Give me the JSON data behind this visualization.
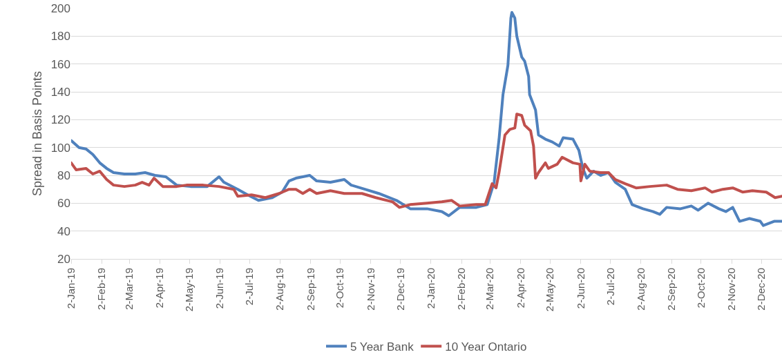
{
  "chart_data": {
    "type": "line",
    "ylabel": "Spread in Basis Points",
    "ylim": [
      20,
      200
    ],
    "yticks": [
      20,
      40,
      60,
      80,
      100,
      120,
      140,
      160,
      180,
      200
    ],
    "xlim": [
      "2019-01-02",
      "2020-12-23"
    ],
    "xticks": [
      {
        "value": "2019-01-02",
        "label": "2-Jan-19"
      },
      {
        "value": "2019-02-02",
        "label": "2-Feb-19"
      },
      {
        "value": "2019-03-02",
        "label": "2-Mar-19"
      },
      {
        "value": "2019-04-02",
        "label": "2-Apr-19"
      },
      {
        "value": "2019-05-02",
        "label": "2-May-19"
      },
      {
        "value": "2019-06-02",
        "label": "2-Jun-19"
      },
      {
        "value": "2019-07-02",
        "label": "2-Jul-19"
      },
      {
        "value": "2019-08-02",
        "label": "2-Aug-19"
      },
      {
        "value": "2019-09-02",
        "label": "2-Sep-19"
      },
      {
        "value": "2019-10-02",
        "label": "2-Oct-19"
      },
      {
        "value": "2019-11-02",
        "label": "2-Nov-19"
      },
      {
        "value": "2019-12-02",
        "label": "2-Dec-19"
      },
      {
        "value": "2020-01-02",
        "label": "2-Jan-20"
      },
      {
        "value": "2020-02-02",
        "label": "2-Feb-20"
      },
      {
        "value": "2020-03-02",
        "label": "2-Mar-20"
      },
      {
        "value": "2020-04-02",
        "label": "2-Apr-20"
      },
      {
        "value": "2020-05-02",
        "label": "2-May-20"
      },
      {
        "value": "2020-06-02",
        "label": "2-Jun-20"
      },
      {
        "value": "2020-07-02",
        "label": "2-Jul-20"
      },
      {
        "value": "2020-08-02",
        "label": "2-Aug-20"
      },
      {
        "value": "2020-09-02",
        "label": "2-Sep-20"
      },
      {
        "value": "2020-10-02",
        "label": "2-Oct-20"
      },
      {
        "value": "2020-11-02",
        "label": "2-Nov-20"
      },
      {
        "value": "2020-12-02",
        "label": "2-Dec-20"
      }
    ],
    "grid": "y",
    "legend": "bottom",
    "marker": "none",
    "line_style": "solid",
    "series": [
      {
        "name": "5 Year Bank",
        "color": "#4f81bd",
        "x": [
          "2019-01-02",
          "2019-01-10",
          "2019-01-17",
          "2019-01-24",
          "2019-01-31",
          "2019-02-07",
          "2019-02-14",
          "2019-02-25",
          "2019-03-08",
          "2019-03-18",
          "2019-03-28",
          "2019-04-08",
          "2019-04-19",
          "2019-05-03",
          "2019-05-20",
          "2019-06-01",
          "2019-06-06",
          "2019-06-20",
          "2019-06-30",
          "2019-07-11",
          "2019-07-25",
          "2019-08-04",
          "2019-08-11",
          "2019-08-18",
          "2019-09-01",
          "2019-09-08",
          "2019-09-22",
          "2019-10-06",
          "2019-10-13",
          "2019-10-27",
          "2019-11-10",
          "2019-11-28",
          "2019-12-12",
          "2019-12-29",
          "2020-01-13",
          "2020-01-20",
          "2020-01-31",
          "2020-02-17",
          "2020-02-28",
          "2020-03-06",
          "2020-03-11",
          "2020-03-15",
          "2020-03-20",
          "2020-03-23",
          "2020-03-24",
          "2020-03-27",
          "2020-03-29",
          "2020-04-03",
          "2020-04-06",
          "2020-04-10",
          "2020-04-11",
          "2020-04-17",
          "2020-04-20",
          "2020-04-27",
          "2020-05-04",
          "2020-05-11",
          "2020-05-15",
          "2020-05-25",
          "2020-05-31",
          "2020-06-04",
          "2020-06-08",
          "2020-06-15",
          "2020-06-22",
          "2020-06-30",
          "2020-07-07",
          "2020-07-17",
          "2020-07-24",
          "2020-08-04",
          "2020-08-14",
          "2020-08-21",
          "2020-08-28",
          "2020-09-11",
          "2020-09-22",
          "2020-09-29",
          "2020-10-09",
          "2020-10-20",
          "2020-10-27",
          "2020-11-03",
          "2020-11-10",
          "2020-11-20",
          "2020-12-01",
          "2020-12-04",
          "2020-12-15",
          "2020-12-23"
        ],
        "values": [
          105,
          100,
          99,
          95,
          89,
          85,
          82,
          81,
          81,
          82,
          80,
          79,
          73,
          72,
          72,
          79,
          75,
          70,
          66,
          62,
          64,
          68,
          76,
          78,
          80,
          76,
          75,
          77,
          73,
          70,
          67,
          62,
          56,
          56,
          54,
          51,
          57,
          57,
          59,
          75,
          106,
          138,
          159,
          193,
          197,
          193,
          180,
          165,
          162,
          151,
          138,
          127,
          109,
          106,
          104,
          101,
          107,
          106,
          98,
          85,
          78,
          83,
          80,
          82,
          75,
          70,
          59,
          56,
          54,
          52,
          57,
          56,
          58,
          55,
          60,
          56,
          54,
          57,
          47,
          49,
          47,
          44,
          47,
          47
        ]
      },
      {
        "name": "10 Year Ontario",
        "color": "#c0504d",
        "x": [
          "2019-01-02",
          "2019-01-07",
          "2019-01-17",
          "2019-01-24",
          "2019-01-31",
          "2019-02-07",
          "2019-02-14",
          "2019-02-25",
          "2019-03-08",
          "2019-03-15",
          "2019-03-22",
          "2019-03-27",
          "2019-04-05",
          "2019-04-19",
          "2019-04-29",
          "2019-05-16",
          "2019-06-01",
          "2019-06-16",
          "2019-06-20",
          "2019-07-04",
          "2019-07-18",
          "2019-08-01",
          "2019-08-11",
          "2019-08-18",
          "2019-08-25",
          "2019-09-01",
          "2019-09-08",
          "2019-09-22",
          "2019-10-06",
          "2019-10-24",
          "2019-11-07",
          "2019-11-24",
          "2019-12-01",
          "2019-12-12",
          "2019-12-29",
          "2020-01-13",
          "2020-01-23",
          "2020-01-31",
          "2020-02-17",
          "2020-02-26",
          "2020-03-04",
          "2020-03-08",
          "2020-03-11",
          "2020-03-17",
          "2020-03-22",
          "2020-03-27",
          "2020-03-29",
          "2020-04-03",
          "2020-04-06",
          "2020-04-12",
          "2020-04-15",
          "2020-04-17",
          "2020-04-20",
          "2020-04-27",
          "2020-04-30",
          "2020-05-09",
          "2020-05-14",
          "2020-05-25",
          "2020-06-01",
          "2020-06-02",
          "2020-06-06",
          "2020-06-11",
          "2020-06-22",
          "2020-06-30",
          "2020-07-07",
          "2020-07-17",
          "2020-07-28",
          "2020-08-11",
          "2020-08-28",
          "2020-09-08",
          "2020-09-22",
          "2020-10-06",
          "2020-10-13",
          "2020-10-24",
          "2020-11-03",
          "2020-11-13",
          "2020-11-23",
          "2020-12-07",
          "2020-12-16",
          "2020-12-23"
        ],
        "values": [
          89,
          84,
          85,
          81,
          83,
          77,
          73,
          72,
          73,
          75,
          73,
          78,
          72,
          72,
          73,
          73,
          72,
          70,
          65,
          66,
          64,
          67,
          70,
          70,
          67,
          70,
          67,
          69,
          67,
          67,
          64,
          61,
          57,
          59,
          60,
          61,
          62,
          58,
          59,
          59,
          74,
          71,
          82,
          109,
          113,
          114,
          124,
          123,
          116,
          112,
          101,
          78,
          82,
          89,
          85,
          88,
          93,
          89,
          88,
          76,
          88,
          83,
          82,
          82,
          77,
          74,
          71,
          72,
          73,
          70,
          69,
          71,
          68,
          70,
          71,
          68,
          69,
          68,
          64,
          65
        ]
      }
    ]
  }
}
